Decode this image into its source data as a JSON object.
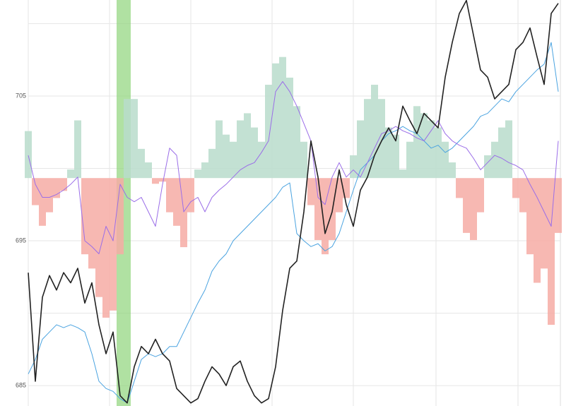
{
  "chart_data": {
    "type": "line",
    "ylim": [
      683.59,
      711.63
    ],
    "yticks": [
      685,
      695,
      705
    ],
    "yminor": [
      690,
      700,
      710
    ],
    "grid": true,
    "y2lim": [
      -3.2,
      2.5
    ],
    "highlight": {
      "xrange": [
        12.5,
        14.5
      ],
      "color": "#8fd47a"
    },
    "series": [
      {
        "type": "bar",
        "axis": "y2",
        "positive_color": "#b9dccb",
        "negative_color": "#f6aca5",
        "values": [
          0.66,
          -0.38,
          -0.67,
          -0.48,
          -0.28,
          -0.18,
          0.12,
          0.81,
          -1.07,
          -1.27,
          -1.67,
          -1.96,
          -1.86,
          -1.07,
          1.11,
          1.11,
          0.41,
          0.22,
          -0.08,
          -0.05,
          -0.48,
          -0.67,
          -0.97,
          -0.48,
          0.12,
          0.22,
          0.41,
          0.81,
          0.61,
          0.51,
          0.81,
          0.91,
          0.71,
          0.51,
          1.31,
          1.61,
          1.7,
          1.41,
          1.01,
          0.51,
          -0.38,
          -0.87,
          -1.07,
          -0.87,
          -0.48,
          -0.28,
          0.32,
          0.81,
          1.11,
          1.31,
          1.11,
          0.71,
          0.61,
          0.12,
          0.51,
          1.01,
          0.91,
          0.81,
          0.71,
          0.51,
          0.22,
          -0.28,
          -0.77,
          -0.87,
          -0.48,
          0.32,
          0.51,
          0.71,
          0.81,
          -0.28,
          -0.48,
          -1.07,
          -1.47,
          -1.27,
          -2.06,
          -0.77
        ]
      },
      {
        "color": "#4aa3e0",
        "width": 1,
        "values": [
          685.8,
          686.8,
          688.2,
          688.7,
          689.2,
          689.0,
          689.2,
          689.0,
          688.7,
          687.2,
          685.3,
          684.8,
          684.6,
          684.1,
          683.8,
          685.3,
          686.8,
          687.2,
          687.0,
          687.2,
          687.7,
          687.7,
          688.7,
          689.7,
          690.7,
          691.6,
          692.9,
          693.6,
          694.1,
          695.0,
          695.5,
          696.0,
          696.5,
          697.0,
          697.5,
          698.0,
          698.7,
          699.0,
          695.5,
          695.0,
          694.6,
          694.8,
          694.3,
          694.6,
          695.5,
          697.0,
          698.5,
          699.9,
          700.4,
          700.9,
          701.9,
          702.4,
          702.6,
          702.9,
          702.6,
          702.4,
          701.9,
          701.4,
          701.6,
          701.1,
          701.4,
          701.9,
          702.4,
          702.9,
          703.6,
          703.8,
          704.3,
          704.8,
          704.6,
          705.3,
          705.8,
          706.3,
          706.8,
          707.2,
          708.7,
          705.3
        ]
      },
      {
        "color": "#9b6ee8",
        "width": 1,
        "values": [
          700.9,
          698.9,
          698.0,
          698.0,
          698.2,
          698.5,
          698.9,
          699.4,
          695.0,
          694.6,
          694.1,
          696.0,
          695.0,
          698.9,
          698.0,
          697.7,
          698.0,
          697.0,
          696.0,
          698.9,
          701.4,
          700.9,
          697.0,
          697.7,
          698.0,
          697.0,
          698.0,
          698.5,
          698.9,
          699.4,
          699.9,
          700.2,
          700.4,
          701.1,
          701.9,
          705.3,
          706.0,
          705.3,
          704.3,
          703.1,
          701.9,
          698.0,
          697.5,
          699.4,
          700.4,
          699.4,
          699.9,
          699.4,
          700.4,
          701.4,
          702.4,
          702.6,
          702.9,
          702.6,
          702.4,
          702.1,
          701.9,
          702.6,
          703.3,
          702.4,
          701.9,
          701.6,
          701.4,
          700.7,
          699.9,
          700.4,
          700.9,
          700.7,
          700.4,
          700.2,
          699.9,
          698.9,
          698.0,
          697.0,
          696.0,
          701.9
        ]
      },
      {
        "color": "#222222",
        "width": 1.6,
        "values": [
          692.8,
          685.3,
          691.1,
          692.6,
          691.6,
          692.8,
          692.1,
          693.1,
          690.7,
          692.1,
          689.2,
          687.2,
          688.7,
          684.3,
          683.8,
          686.3,
          687.7,
          687.2,
          688.2,
          687.2,
          686.7,
          684.8,
          684.3,
          683.8,
          684.1,
          685.3,
          686.3,
          685.8,
          685.0,
          686.3,
          686.7,
          685.3,
          684.3,
          683.8,
          684.1,
          686.3,
          690.2,
          693.1,
          693.6,
          697.0,
          701.9,
          699.4,
          695.5,
          697.0,
          699.9,
          697.5,
          696.0,
          698.5,
          699.4,
          700.9,
          701.9,
          702.8,
          701.9,
          704.3,
          703.3,
          702.4,
          703.8,
          703.3,
          702.8,
          706.3,
          708.7,
          710.7,
          711.6,
          709.2,
          706.8,
          706.3,
          704.8,
          705.3,
          705.8,
          708.2,
          708.7,
          709.7,
          707.7,
          705.8,
          710.7,
          711.4
        ]
      }
    ]
  }
}
